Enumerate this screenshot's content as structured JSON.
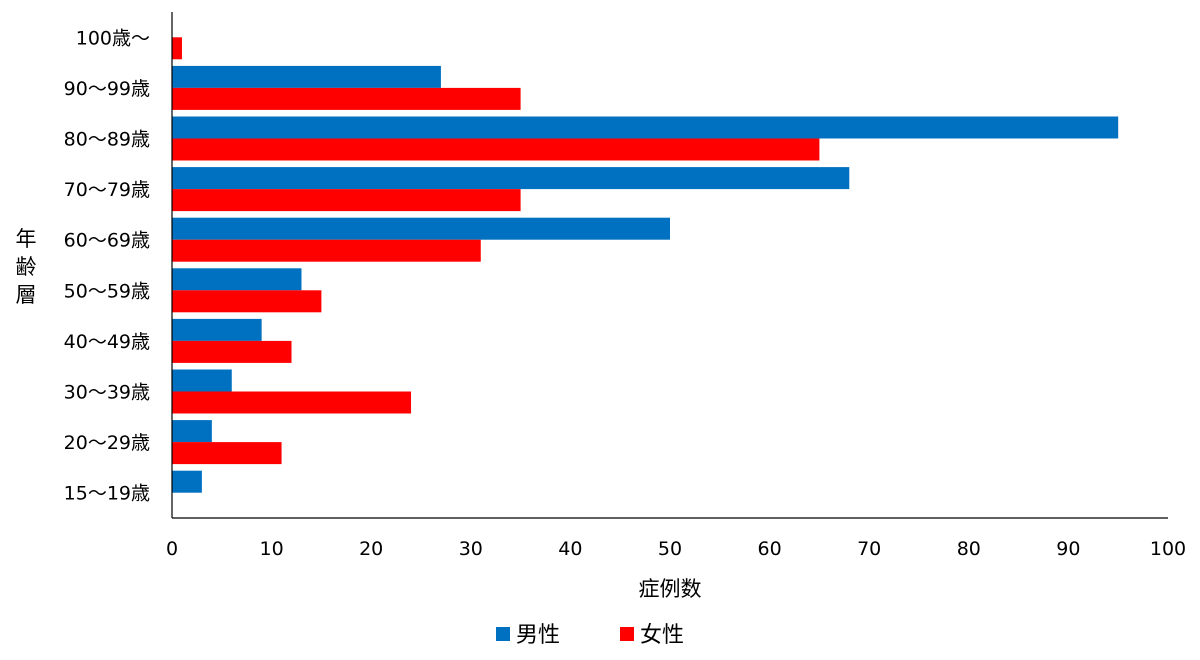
{
  "chart_data": {
    "type": "bar",
    "orientation": "horizontal",
    "title": "",
    "xlabel": "症例数",
    "ylabel": "年齢層",
    "xlim": [
      0,
      100
    ],
    "xticks": [
      0,
      10,
      20,
      30,
      40,
      50,
      60,
      70,
      80,
      90,
      100
    ],
    "grid": false,
    "legend_position": "bottom",
    "categories": [
      "100歳～",
      "90～99歳",
      "80～89歳",
      "70～79歳",
      "60～69歳",
      "50～59歳",
      "40～49歳",
      "30～39歳",
      "20～29歳",
      "15～19歳"
    ],
    "series": [
      {
        "name": "男性",
        "color": "#0070C0",
        "values": [
          0,
          27,
          95,
          68,
          50,
          13,
          9,
          6,
          4,
          3
        ]
      },
      {
        "name": "女性",
        "color": "#FF0000",
        "values": [
          1,
          35,
          65,
          35,
          31,
          15,
          12,
          24,
          11,
          0
        ]
      }
    ]
  }
}
